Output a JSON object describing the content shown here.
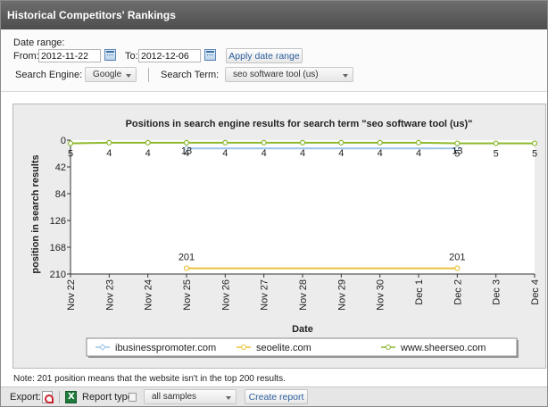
{
  "window": {
    "title": "Historical Competitors' Rankings"
  },
  "controls": {
    "date_range_label": "Date range:",
    "from_label": "From:",
    "from_value": "2012-11-22",
    "to_label": "To:",
    "to_value": "2012-12-06",
    "apply_label": "Apply date range",
    "engine_label": "Search Engine:",
    "engine_value": "Google",
    "term_label": "Search Term:",
    "term_value": "seo software tool (us)"
  },
  "note": "Note: 201 position means that the website isn't in the top 200 results.",
  "footer": {
    "export_label": "Export:",
    "report_type_label": "Report type:",
    "report_type_value": "all samples",
    "create_label": "Create report"
  },
  "icons": {
    "calendar": "calendar-icon",
    "pdf": "pdf-icon",
    "excel": "excel-icon",
    "help": "help-icon",
    "dropdown": "chevron-down-icon"
  },
  "chart_data": {
    "type": "line",
    "title": "Positions in search engine results for search term \"seo software tool (us)\"",
    "xlabel": "Date",
    "ylabel": "position in search results",
    "categories": [
      "Nov 22",
      "Nov 23",
      "Nov 24",
      "Nov 25",
      "Nov 26",
      "Nov 27",
      "Nov 28",
      "Nov 29",
      "Nov 30",
      "Dec 1",
      "Dec 2",
      "Dec 3",
      "Dec 4"
    ],
    "yticks": [
      0,
      42,
      84,
      126,
      168,
      210
    ],
    "ylim": [
      0,
      210
    ],
    "y_inverted": true,
    "grid": false,
    "legend_position": "bottom",
    "series": [
      {
        "name": "ibusinesspromoter.com",
        "color": "#9ec3ea",
        "marker": "diamond",
        "x": [
          "Nov 25",
          "Dec 2"
        ],
        "values": [
          13,
          13
        ],
        "labels": [
          "13",
          "13"
        ]
      },
      {
        "name": "seoelite.com",
        "color": "#e8c23a",
        "marker": "circle",
        "x": [
          "Nov 25",
          "Dec 2"
        ],
        "values": [
          201,
          201
        ],
        "labels": [
          "201",
          "201"
        ]
      },
      {
        "name": "www.sheerseo.com",
        "color": "#8cb82c",
        "marker": "circle",
        "x": [
          "Nov 22",
          "Nov 23",
          "Nov 24",
          "Nov 25",
          "Nov 26",
          "Nov 27",
          "Nov 28",
          "Nov 29",
          "Nov 30",
          "Dec 1",
          "Dec 2",
          "Dec 3",
          "Dec 4"
        ],
        "values": [
          5,
          4,
          4,
          4,
          4,
          4,
          4,
          4,
          4,
          4,
          5,
          5,
          5
        ],
        "labels": [
          "5",
          "4",
          "4",
          "4",
          "4",
          "4",
          "4",
          "4",
          "4",
          "4",
          "5",
          "5",
          "5"
        ]
      }
    ]
  }
}
